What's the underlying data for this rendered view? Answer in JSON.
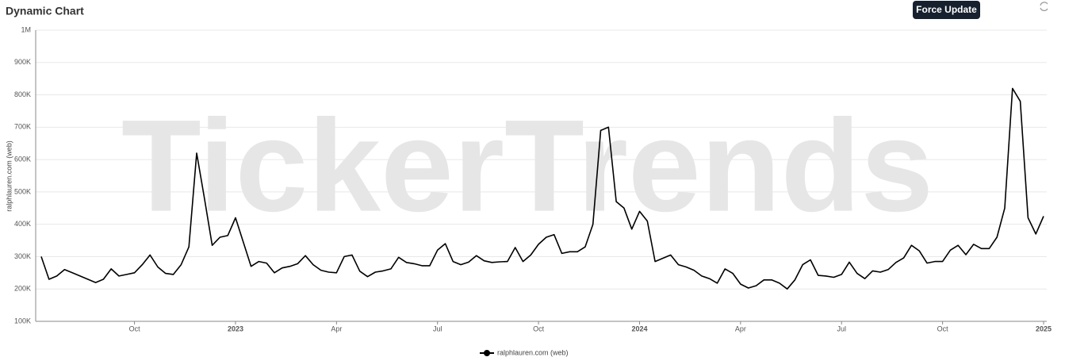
{
  "title": "Dynamic Chart",
  "button": "Force Update",
  "chart_data": {
    "type": "line",
    "watermark": "TickerTrends",
    "y_label": "ralphlauren.com  (web)",
    "categories": [
      null,
      null,
      null,
      null,
      null,
      null,
      null,
      null,
      null,
      null,
      null,
      null,
      "Oct",
      null,
      null,
      null,
      null,
      null,
      null,
      null,
      null,
      null,
      null,
      null,
      null,
      "2023",
      null,
      null,
      null,
      null,
      null,
      null,
      null,
      null,
      null,
      null,
      null,
      null,
      "Apr",
      null,
      null,
      null,
      null,
      null,
      null,
      null,
      null,
      null,
      null,
      null,
      null,
      "Jul",
      null,
      null,
      null,
      null,
      null,
      null,
      null,
      null,
      null,
      null,
      null,
      null,
      "Oct",
      null,
      null,
      null,
      null,
      null,
      null,
      null,
      null,
      null,
      null,
      null,
      null,
      "2024",
      null,
      null,
      null,
      null,
      null,
      null,
      null,
      null,
      null,
      null,
      null,
      null,
      "Apr",
      null,
      null,
      null,
      null,
      null,
      null,
      null,
      null,
      null,
      null,
      null,
      null,
      "Jul",
      null,
      null,
      null,
      null,
      null,
      null,
      null,
      null,
      null,
      null,
      null,
      null,
      "Oct",
      null,
      null,
      null,
      null,
      null,
      null,
      null,
      null,
      null,
      null,
      null,
      null,
      "2025"
    ],
    "series": [
      {
        "name": "ralphlauren.com  (web)",
        "color": "#000000",
        "values": [
          300000,
          230000,
          240000,
          260000,
          250000,
          240000,
          230000,
          220000,
          230000,
          262000,
          240000,
          245000,
          250000,
          275000,
          305000,
          268000,
          248000,
          245000,
          275000,
          330000,
          620000,
          480000,
          335000,
          360000,
          365000,
          420000,
          345000,
          270000,
          285000,
          280000,
          250000,
          265000,
          270000,
          278000,
          303000,
          275000,
          258000,
          252000,
          250000,
          300000,
          305000,
          255000,
          238000,
          252000,
          256000,
          262000,
          298000,
          282000,
          278000,
          272000,
          272000,
          320000,
          340000,
          285000,
          275000,
          283000,
          303000,
          287000,
          282000,
          284000,
          285000,
          328000,
          285000,
          305000,
          338000,
          360000,
          368000,
          310000,
          315000,
          315000,
          330000,
          400000,
          690000,
          700000,
          470000,
          450000,
          385000,
          440000,
          410000,
          285000,
          295000,
          305000,
          275000,
          268000,
          258000,
          240000,
          232000,
          218000,
          262000,
          248000,
          215000,
          203000,
          210000,
          228000,
          228000,
          218000,
          200000,
          228000,
          275000,
          290000,
          242000,
          240000,
          236000,
          245000,
          283000,
          248000,
          232000,
          256000,
          252000,
          260000,
          282000,
          296000,
          335000,
          318000,
          280000,
          285000,
          285000,
          320000,
          335000,
          306000,
          338000,
          325000,
          325000,
          360000,
          450000,
          820000,
          780000,
          420000,
          370000,
          425000
        ]
      }
    ],
    "ylim": [
      100000,
      1000000
    ],
    "yticks": [
      {
        "value": 100000,
        "label": "100K"
      },
      {
        "value": 200000,
        "label": "200K"
      },
      {
        "value": 300000,
        "label": "300K"
      },
      {
        "value": 400000,
        "label": "400K"
      },
      {
        "value": 500000,
        "label": "500K"
      },
      {
        "value": 600000,
        "label": "600K"
      },
      {
        "value": 700000,
        "label": "700K"
      },
      {
        "value": 800000,
        "label": "800K"
      },
      {
        "value": 900000,
        "label": "900K"
      },
      {
        "value": 1000000,
        "label": "1M"
      }
    ],
    "grid": true
  }
}
